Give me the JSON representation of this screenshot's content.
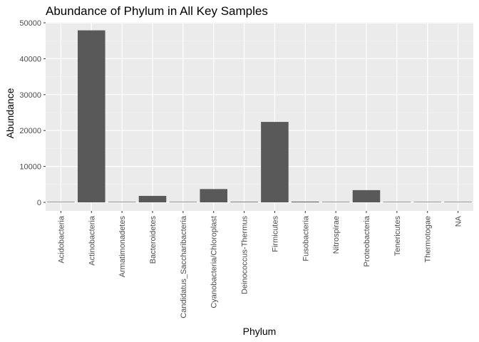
{
  "chart_data": {
    "type": "bar",
    "title": "Abundance of Phylum in All Key Samples",
    "xlabel": "Phylum",
    "ylabel": "Abundance",
    "categories": [
      "Acidobacteria",
      "Actinobacteria",
      "Armatimonadetes",
      "Bacteroidetes",
      "Candidatus_Saccharibacteria",
      "Cyanobacteria/Chloroplast",
      "Deinococcus-Thermus",
      "Firmicutes",
      "Fusobacteria",
      "Nitrospirae",
      "Proteobacteria",
      "Tenericutes",
      "Thermotogae",
      "NA"
    ],
    "values": [
      10,
      47900,
      10,
      1800,
      10,
      3700,
      150,
      22400,
      200,
      10,
      3400,
      10,
      10,
      10
    ],
    "ylim": [
      0,
      50000
    ],
    "yticks": [
      0,
      10000,
      20000,
      30000,
      40000,
      50000
    ],
    "grid": true,
    "legend": "none",
    "colors": {
      "panel_background": "#ebebeb",
      "grid_major": "#ffffff",
      "bar_fill": "#595959",
      "tick_text": "#4d4d4d",
      "text": "#000000"
    }
  }
}
